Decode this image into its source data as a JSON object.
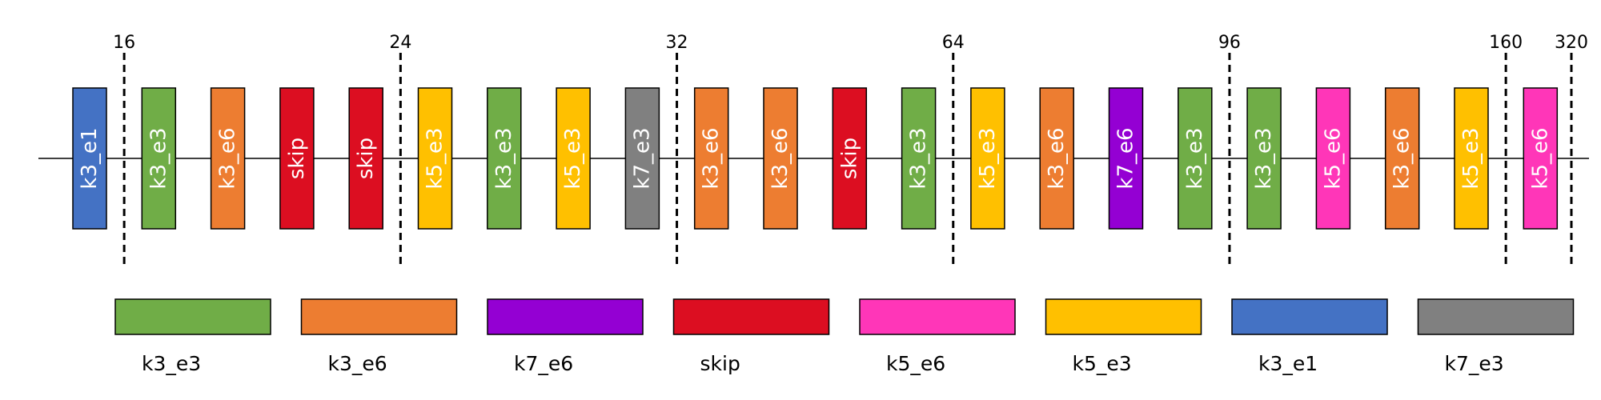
{
  "blocks": [
    {
      "label": "k3_e1",
      "color": "#4472C4"
    },
    {
      "label": "k3_e3",
      "color": "#70AD47"
    },
    {
      "label": "k3_e6",
      "color": "#ED7D31"
    },
    {
      "label": "skip",
      "color": "#DC0E21"
    },
    {
      "label": "skip",
      "color": "#DC0E21"
    },
    {
      "label": "k5_e3",
      "color": "#FFC000"
    },
    {
      "label": "k3_e3",
      "color": "#70AD47"
    },
    {
      "label": "k5_e3",
      "color": "#FFC000"
    },
    {
      "label": "k7_e3",
      "color": "#808080"
    },
    {
      "label": "k3_e6",
      "color": "#ED7D31"
    },
    {
      "label": "k3_e6",
      "color": "#ED7D31"
    },
    {
      "label": "skip",
      "color": "#DC0E21"
    },
    {
      "label": "k3_e3",
      "color": "#70AD47"
    },
    {
      "label": "k5_e3",
      "color": "#FFC000"
    },
    {
      "label": "k3_e6",
      "color": "#ED7D31"
    },
    {
      "label": "k7_e6",
      "color": "#9400D3"
    },
    {
      "label": "k3_e3",
      "color": "#70AD47"
    },
    {
      "label": "k3_e3",
      "color": "#70AD47"
    },
    {
      "label": "k5_e6",
      "color": "#FF36B8"
    },
    {
      "label": "k3_e6",
      "color": "#ED7D31"
    },
    {
      "label": "k5_e3",
      "color": "#FFC000"
    },
    {
      "label": "k5_e6",
      "color": "#FF36B8"
    }
  ],
  "stage_dividers": [
    {
      "label": "16",
      "after_block": 1
    },
    {
      "label": "24",
      "after_block": 5
    },
    {
      "label": "32",
      "after_block": 9
    },
    {
      "label": "64",
      "after_block": 13
    },
    {
      "label": "96",
      "after_block": 17
    },
    {
      "label": "160",
      "after_block": 21
    },
    {
      "label": "320",
      "after_block": 22
    }
  ],
  "legend": [
    {
      "label": "k3_e3",
      "color": "#70AD47"
    },
    {
      "label": "k3_e6",
      "color": "#ED7D31"
    },
    {
      "label": "k7_e6",
      "color": "#9400D3"
    },
    {
      "label": "skip",
      "color": "#DC0E21"
    },
    {
      "label": "k5_e6",
      "color": "#FF36B8"
    },
    {
      "label": "k5_e3",
      "color": "#FFC000"
    },
    {
      "label": "k3_e1",
      "color": "#4472C4"
    },
    {
      "label": "k7_e3",
      "color": "#808080"
    }
  ]
}
